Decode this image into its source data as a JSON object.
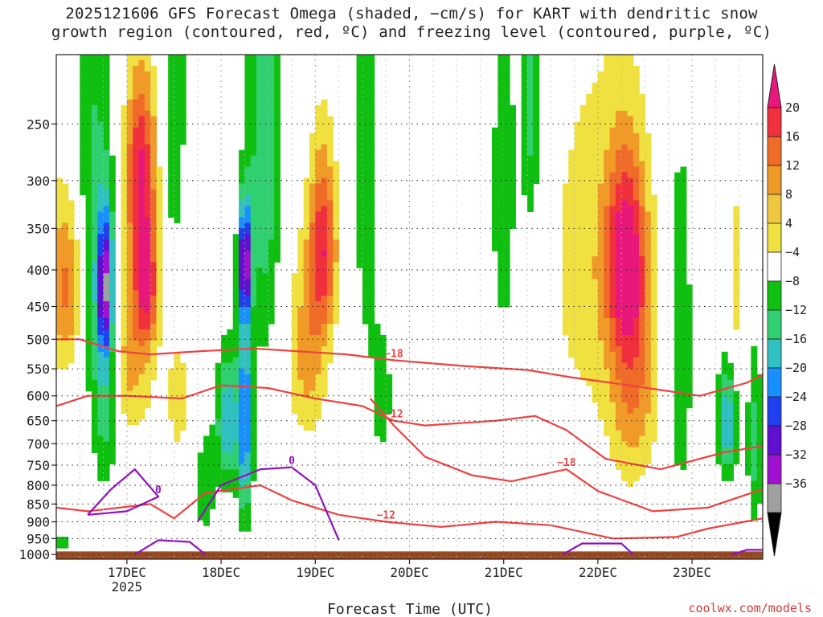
{
  "title_line1": "2025121606 GFS Forecast Omega (shaded, −cm/s) for KART with dendritic snow",
  "title_line2": "growth region (contoured, red, ºC) and freezing level (contoured, purple, ºC)",
  "credit": "coolwx.com/models",
  "chart_data": {
    "type": "heatmap",
    "title": "2025121606 GFS Forecast Omega (shaded, −cm/s) for KART with dendritic snow growth region (contoured, red, ºC) and freezing level (contoured, purple, ºC)",
    "xlabel": "Forecast Time (UTC)",
    "ylabel": "Pressure (hPa)",
    "x_ticks": [
      "17DEC",
      "18DEC",
      "19DEC",
      "20DEC",
      "21DEC",
      "22DEC",
      "23DEC"
    ],
    "x_year_label": "2025",
    "x_range_hours": [
      6,
      186
    ],
    "y_ticks": [
      250,
      300,
      350,
      400,
      450,
      500,
      550,
      600,
      650,
      700,
      750,
      800,
      850,
      900,
      950,
      1000
    ],
    "y_range": [
      200,
      1015
    ],
    "y_scale": "log-pressure",
    "colorbar": {
      "ticks": [
        "20",
        "16",
        "12",
        "8",
        "4",
        "−4",
        "−8",
        "−12",
        "−16",
        "−20",
        "−24",
        "−28",
        "−32",
        "−36"
      ],
      "colors": [
        "#e8187a",
        "#f0303c",
        "#f06a28",
        "#f09a28",
        "#f0c840",
        "#f0e040",
        "#ffffff",
        "#10c010",
        "#30d070",
        "#30c0c0",
        "#1890ff",
        "#2040f0",
        "#6010d0",
        "#a010d0",
        "#a0a0a0",
        "#000000"
      ]
    },
    "omega_blobs": [
      {
        "t": 27.5,
        "p": 290,
        "v": 20,
        "dt": 4,
        "dp": 90
      },
      {
        "t": 29,
        "p": 420,
        "v": 18,
        "dt": 3,
        "dp": 80
      },
      {
        "t": 25,
        "p": 520,
        "v": 10,
        "dt": 6,
        "dp": 150
      },
      {
        "t": 9,
        "p": 420,
        "v": 14,
        "dt": 4,
        "dp": 120
      },
      {
        "t": 74,
        "p": 370,
        "v": 18,
        "dt": 3.5,
        "dp": 110
      },
      {
        "t": 70,
        "p": 520,
        "v": 10,
        "dt": 5,
        "dp": 160
      },
      {
        "t": 151,
        "p": 380,
        "v": 18,
        "dt": 5,
        "dp": 120
      },
      {
        "t": 153,
        "p": 560,
        "v": 12,
        "dt": 6,
        "dp": 220
      },
      {
        "t": 142,
        "p": 400,
        "v": 6,
        "dt": 12,
        "dp": 260
      },
      {
        "t": 113,
        "p": 150,
        "v": 6,
        "dt": 4,
        "dp": 60
      },
      {
        "t": 179,
        "p": 420,
        "v": 6,
        "dt": 2,
        "dp": 150
      },
      {
        "t": 3,
        "p": 450,
        "v": 6,
        "dt": 3,
        "dp": 250
      },
      {
        "t": 37,
        "p": 600,
        "v": 6,
        "dt": 3,
        "dp": 150
      },
      {
        "t": 18.5,
        "p": 420,
        "v": -24,
        "dt": 2,
        "dp": 90
      },
      {
        "t": 18.5,
        "p": 560,
        "v": -12,
        "dt": 3,
        "dp": 220
      },
      {
        "t": 15,
        "p": 300,
        "v": -8,
        "dt": 5,
        "dp": 300
      },
      {
        "t": 54,
        "p": 390,
        "v": -28,
        "dt": 1.5,
        "dp": 70
      },
      {
        "t": 54,
        "p": 650,
        "v": -20,
        "dt": 2,
        "dp": 230
      },
      {
        "t": 49.5,
        "p": 650,
        "v": -16,
        "dt": 2.5,
        "dp": 140
      },
      {
        "t": 59,
        "p": 250,
        "v": -12,
        "dt": 4,
        "dp": 250
      },
      {
        "t": 36,
        "p": 200,
        "v": -8,
        "dt": 3,
        "dp": 200
      },
      {
        "t": 85,
        "p": 250,
        "v": -8,
        "dt": 3,
        "dp": 250
      },
      {
        "t": 89,
        "p": 600,
        "v": -6,
        "dt": 3,
        "dp": 150
      },
      {
        "t": 127,
        "p": 230,
        "v": -10,
        "dt": 2.5,
        "dp": 120
      },
      {
        "t": 165,
        "p": 520,
        "v": -8,
        "dt": 3,
        "dp": 300
      },
      {
        "t": 177,
        "p": 650,
        "v": -16,
        "dt": 2.5,
        "dp": 120
      },
      {
        "t": 184,
        "p": 700,
        "v": -10,
        "dt": 2,
        "dp": 200
      },
      {
        "t": 44,
        "p": 800,
        "v": -6,
        "dt": 3,
        "dp": 180
      },
      {
        "t": 7.5,
        "p": 965,
        "v": -6,
        "dt": 1.5,
        "dp": 35
      },
      {
        "t": 120,
        "p": 310,
        "v": -6,
        "dt": 4,
        "dp": 250
      },
      {
        "t": 99,
        "p": 300,
        "v": 4,
        "dt": 3,
        "dp": 200
      }
    ],
    "dgz_contours": [
      {
        "label": "−18",
        "points": [
          [
            6,
            500
          ],
          [
            12,
            500
          ],
          [
            22,
            520
          ],
          [
            30,
            525
          ],
          [
            42,
            520
          ],
          [
            56,
            515
          ],
          [
            80,
            525
          ],
          [
            92,
            535
          ],
          [
            110,
            545
          ],
          [
            126,
            552
          ],
          [
            137,
            565
          ],
          [
            152,
            580
          ],
          [
            170,
            600
          ],
          [
            182,
            575
          ],
          [
            186,
            560
          ]
        ]
      },
      {
        "label": "−12",
        "points": [
          [
            6,
            620
          ],
          [
            14,
            600
          ],
          [
            24,
            600
          ],
          [
            38,
            605
          ],
          [
            48,
            580
          ],
          [
            60,
            585
          ],
          [
            72,
            605
          ],
          [
            84,
            620
          ],
          [
            92,
            650
          ],
          [
            100,
            660
          ],
          [
            118,
            650
          ],
          [
            128,
            640
          ],
          [
            136,
            670
          ],
          [
            146,
            735
          ],
          [
            160,
            760
          ],
          [
            176,
            720
          ],
          [
            186,
            705
          ]
        ]
      },
      {
        "label": "−18",
        "points": [
          [
            86,
            605
          ],
          [
            92,
            660
          ],
          [
            100,
            730
          ],
          [
            112,
            775
          ],
          [
            122,
            790
          ],
          [
            136,
            760
          ],
          [
            144,
            815
          ],
          [
            158,
            870
          ],
          [
            172,
            860
          ],
          [
            186,
            810
          ]
        ]
      },
      {
        "label": "−12",
        "points": [
          [
            6,
            860
          ],
          [
            14,
            870
          ],
          [
            30,
            850
          ],
          [
            36,
            890
          ],
          [
            44,
            820
          ],
          [
            58,
            800
          ],
          [
            66,
            840
          ],
          [
            78,
            880
          ],
          [
            90,
            900
          ],
          [
            104,
            915
          ],
          [
            118,
            900
          ],
          [
            132,
            910
          ],
          [
            148,
            950
          ],
          [
            164,
            945
          ],
          [
            172,
            920
          ],
          [
            186,
            890
          ]
        ]
      }
    ],
    "freezing_contours": [
      {
        "label": "0",
        "points": [
          [
            14,
            880
          ],
          [
            20,
            810
          ],
          [
            26,
            760
          ],
          [
            32,
            830
          ],
          [
            24,
            870
          ],
          [
            14,
            880
          ]
        ]
      },
      {
        "label": "0",
        "points": [
          [
            42,
            900
          ],
          [
            48,
            800
          ],
          [
            58,
            760
          ],
          [
            66,
            755
          ],
          [
            72,
            800
          ],
          [
            78,
            955
          ]
        ]
      },
      {
        "label": "",
        "points": [
          [
            26,
            1000
          ],
          [
            32,
            955
          ],
          [
            40,
            960
          ],
          [
            44,
            1000
          ]
        ]
      },
      {
        "label": "",
        "points": [
          [
            135,
            1000
          ],
          [
            140,
            965
          ],
          [
            150,
            965
          ],
          [
            153,
            1000
          ]
        ]
      },
      {
        "label": "",
        "points": [
          [
            178,
            1000
          ],
          [
            182,
            985
          ],
          [
            186,
            985
          ]
        ]
      }
    ],
    "terrain_pressure_hpa": 990
  }
}
